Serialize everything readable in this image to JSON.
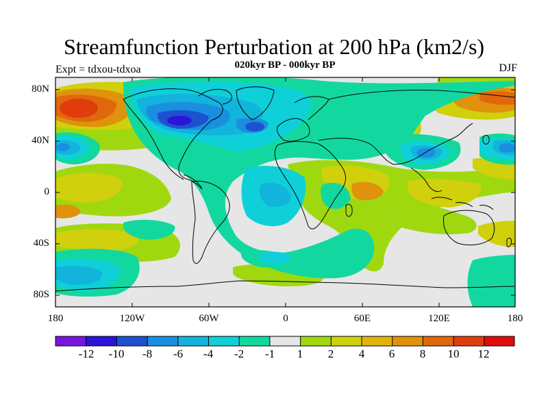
{
  "map": {
    "title": "Streamfunction Perturbation at 200 hPa (km2/s)",
    "subtitle": "020kyr BP - 000kyr BP",
    "left_label": "Expt = tdxou-tdxoa",
    "right_label": "DJF",
    "lat_labels": [
      "80N",
      "40N",
      "0",
      "40S",
      "80S"
    ],
    "lon_labels": [
      "180",
      "120W",
      "60W",
      "0",
      "60E",
      "120E",
      "180"
    ],
    "colors": {
      "background": "#e6e6e6",
      "coast": "#000000",
      "palette": [
        "#7a14e0",
        "#2a14d8",
        "#1d52cf",
        "#1a8fe0",
        "#12b4dc",
        "#0fd0d8",
        "#12d8a0",
        "#e6e6e6",
        "#a0d810",
        "#d0d00c",
        "#e0b40c",
        "#e0920c",
        "#e0680c",
        "#e03c0c",
        "#e00c0c"
      ]
    }
  },
  "colorbar": {
    "labels": [
      "-12",
      "-10",
      "-8",
      "-6",
      "-4",
      "-2",
      "-1",
      "1",
      "2",
      "4",
      "6",
      "8",
      "10",
      "12"
    ]
  }
}
